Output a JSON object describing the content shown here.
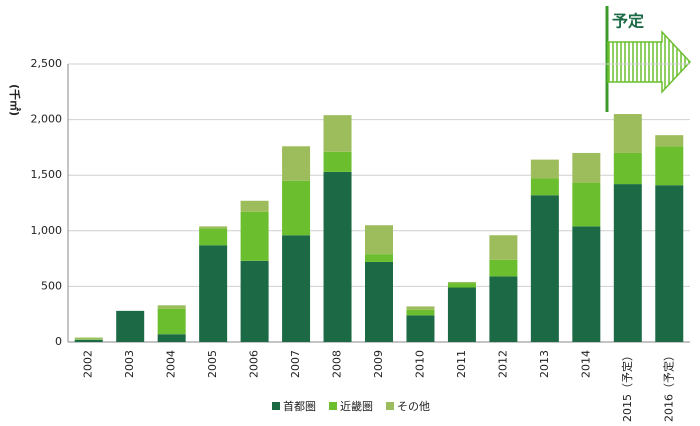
{
  "chart_data": {
    "type": "stacked_bar",
    "y_label": "(千㎡)",
    "annotation": "予定",
    "categories": [
      "2002",
      "2003",
      "2004",
      "2005",
      "2006",
      "2007",
      "2008",
      "2009",
      "2010",
      "2011",
      "2012",
      "2013",
      "2014",
      "2015（予定）",
      "2016（予定）"
    ],
    "series": [
      {
        "name": "首都圏",
        "color": "#1b6a45",
        "values": [
          20,
          280,
          70,
          870,
          730,
          960,
          1530,
          720,
          240,
          490,
          590,
          1320,
          1040,
          1420,
          1410
        ]
      },
      {
        "name": "近畿圏",
        "color": "#6bbf2e",
        "values": [
          5,
          0,
          230,
          150,
          440,
          490,
          180,
          70,
          50,
          40,
          150,
          150,
          390,
          280,
          350
        ]
      },
      {
        "name": "その他",
        "color": "#9dbd5c",
        "values": [
          15,
          0,
          30,
          20,
          100,
          310,
          330,
          260,
          30,
          10,
          220,
          170,
          270,
          350,
          100
        ]
      }
    ],
    "ylim": [
      0,
      2500
    ],
    "yticks": [
      0,
      {
        "value": 500,
        "label": "500"
      },
      {
        "value": 1000,
        "label": "1,000"
      },
      {
        "value": 1500,
        "label": "1,500"
      },
      {
        "value": 2000,
        "label": "2,000"
      },
      {
        "value": 2500,
        "label": "2,500"
      }
    ],
    "grid": true,
    "legend": "bottom"
  }
}
